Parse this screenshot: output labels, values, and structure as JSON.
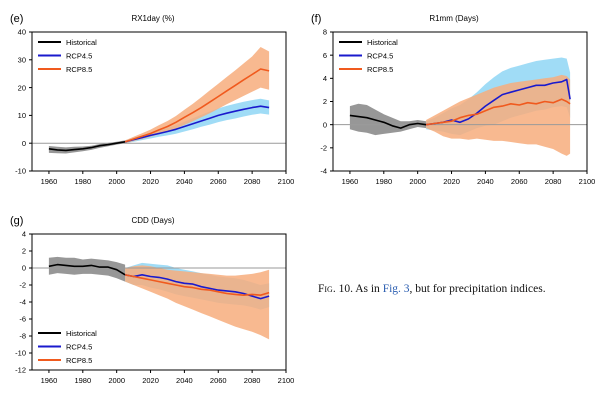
{
  "caption": {
    "fig_label": "Fig. 10.",
    "text_before": " As in ",
    "link": "Fig. 3",
    "text_after": ", but for precipitation indices."
  },
  "colors": {
    "historical": "#000000",
    "historical_band": "#8c8c8c",
    "rcp45": "#1a1acd",
    "rcp45_band": "#8fd6f5",
    "rcp85": "#f05a1e",
    "rcp85_band": "#f7ad7d",
    "zero_line": "#9a9a9a"
  },
  "chart_data": [
    {
      "type": "line",
      "panel": "(e)",
      "title": "RX1day (%)",
      "xlabel": "",
      "ylabel": "",
      "xlim": [
        1950,
        2100
      ],
      "ylim": [
        -10,
        40
      ],
      "xticks": [
        1960,
        1980,
        2000,
        2020,
        2040,
        2060,
        2080,
        2100
      ],
      "yticks": [
        -10,
        0,
        10,
        20,
        30,
        40
      ],
      "legend": {
        "placement": "top-left",
        "entries": [
          "Historical",
          "RCP4.5",
          "RCP8.5"
        ]
      },
      "series": [
        {
          "name": "Historical",
          "x": [
            1960,
            1965,
            1970,
            1975,
            1980,
            1985,
            1990,
            1995,
            2000,
            2005
          ],
          "values": [
            -2,
            -2.4,
            -2.6,
            -2.3,
            -2,
            -1.6,
            -0.9,
            -0.5,
            0,
            0.5
          ],
          "lower": [
            -3.5,
            -3.6,
            -3.7,
            -3.3,
            -2.9,
            -2.4,
            -1.7,
            -1.1,
            -0.5,
            0
          ],
          "upper": [
            -1,
            -1.3,
            -1.5,
            -1.3,
            -1.2,
            -0.9,
            -0.3,
            0.1,
            0.5,
            1
          ]
        },
        {
          "name": "RCP4.5",
          "x": [
            2005,
            2010,
            2015,
            2020,
            2025,
            2030,
            2035,
            2040,
            2045,
            2050,
            2055,
            2060,
            2065,
            2070,
            2075,
            2080,
            2085,
            2090
          ],
          "values": [
            0.5,
            1.3,
            2.0,
            2.8,
            3.5,
            4.2,
            5.0,
            6.0,
            7.0,
            8.0,
            9.0,
            10.0,
            10.8,
            11.5,
            12.2,
            12.8,
            13.3,
            12.8
          ],
          "lower": [
            0,
            0.5,
            1.1,
            1.7,
            2.3,
            2.8,
            3.4,
            4.2,
            5.0,
            5.9,
            6.7,
            7.6,
            8.3,
            8.9,
            9.6,
            10.2,
            10.7,
            10.3
          ],
          "upper": [
            1,
            2.0,
            2.8,
            3.7,
            4.6,
            5.5,
            6.5,
            7.7,
            9.0,
            10.2,
            11.4,
            12.5,
            13.4,
            14.2,
            14.9,
            15.5,
            16.0,
            15.4
          ]
        },
        {
          "name": "RCP8.5",
          "x": [
            2005,
            2010,
            2015,
            2020,
            2025,
            2030,
            2035,
            2040,
            2045,
            2050,
            2055,
            2060,
            2065,
            2070,
            2075,
            2080,
            2085,
            2090
          ],
          "values": [
            0.5,
            1.5,
            2.5,
            3.5,
            4.8,
            6.0,
            7.5,
            9.3,
            11.0,
            12.8,
            14.8,
            16.8,
            18.8,
            20.8,
            22.8,
            24.7,
            26.7,
            26.0
          ],
          "lower": [
            0,
            0.8,
            1.5,
            2.3,
            3.2,
            4.2,
            5.3,
            6.6,
            7.9,
            9.3,
            10.8,
            12.4,
            14.0,
            15.5,
            17.0,
            18.5,
            20.0,
            19.2
          ],
          "upper": [
            1,
            2.3,
            3.6,
            4.9,
            6.5,
            8.0,
            9.8,
            12.0,
            14.2,
            16.5,
            19.0,
            21.4,
            23.8,
            26.2,
            28.7,
            31.2,
            34.6,
            33.0
          ]
        }
      ]
    },
    {
      "type": "line",
      "panel": "(f)",
      "title": "R1mm (Days)",
      "xlabel": "",
      "ylabel": "",
      "xlim": [
        1950,
        2100
      ],
      "ylim": [
        -4,
        8
      ],
      "xticks": [
        1960,
        1980,
        2000,
        2020,
        2040,
        2060,
        2080,
        2100
      ],
      "yticks": [
        -4,
        -2,
        0,
        2,
        4,
        6,
        8
      ],
      "legend": {
        "placement": "top-left",
        "entries": [
          "Historical",
          "RCP4.5",
          "RCP8.5"
        ]
      },
      "series": [
        {
          "name": "Historical",
          "x": [
            1960,
            1965,
            1970,
            1975,
            1980,
            1985,
            1990,
            1995,
            2000,
            2005
          ],
          "values": [
            0.8,
            0.7,
            0.6,
            0.4,
            0.2,
            -0.1,
            -0.3,
            0,
            0.1,
            0
          ],
          "lower": [
            -0.4,
            -0.6,
            -0.7,
            -0.9,
            -0.8,
            -0.7,
            -0.6,
            -0.4,
            -0.2,
            -0.3
          ],
          "upper": [
            1.6,
            1.8,
            1.7,
            1.3,
            0.9,
            0.6,
            0.3,
            0.3,
            0.4,
            0.3
          ]
        },
        {
          "name": "RCP4.5",
          "x": [
            2005,
            2010,
            2015,
            2020,
            2025,
            2030,
            2035,
            2040,
            2045,
            2050,
            2055,
            2060,
            2065,
            2070,
            2075,
            2080,
            2085,
            2088,
            2090
          ],
          "values": [
            0,
            0.1,
            0.2,
            0.4,
            0.2,
            0.5,
            1.0,
            1.6,
            2.1,
            2.6,
            2.8,
            3.0,
            3.2,
            3.4,
            3.4,
            3.6,
            3.7,
            3.9,
            2.2
          ],
          "lower": [
            -0.4,
            -0.5,
            -0.6,
            -0.8,
            -0.9,
            -0.6,
            -0.3,
            -0.1,
            0.0,
            0.3,
            0.6,
            0.8,
            1.0,
            1.2,
            1.3,
            1.5,
            1.6,
            1.5,
            0.6
          ],
          "upper": [
            0.3,
            0.6,
            1.0,
            1.4,
            1.7,
            2.2,
            2.8,
            3.5,
            4.1,
            4.6,
            4.9,
            5.1,
            5.3,
            5.5,
            5.6,
            5.7,
            5.8,
            5.7,
            4.5
          ]
        },
        {
          "name": "RCP8.5",
          "x": [
            2005,
            2010,
            2015,
            2020,
            2025,
            2030,
            2035,
            2040,
            2045,
            2050,
            2055,
            2060,
            2065,
            2070,
            2075,
            2080,
            2085,
            2088,
            2090
          ],
          "values": [
            0,
            0.1,
            0.2,
            0.3,
            0.6,
            0.8,
            0.9,
            1.2,
            1.5,
            1.6,
            1.8,
            1.7,
            1.9,
            1.8,
            2.0,
            1.9,
            2.2,
            2.0,
            1.8
          ],
          "lower": [
            -0.3,
            -0.6,
            -1.0,
            -1.2,
            -1.2,
            -1.3,
            -1.2,
            -1.3,
            -1.4,
            -1.4,
            -1.5,
            -1.6,
            -1.7,
            -1.7,
            -1.9,
            -2.1,
            -2.5,
            -2.7,
            -2.5
          ],
          "upper": [
            0.4,
            0.8,
            1.2,
            1.6,
            2.0,
            2.3,
            2.6,
            2.9,
            3.2,
            3.4,
            3.6,
            3.7,
            3.8,
            3.9,
            4.0,
            4.1,
            4.3,
            4.2,
            3.9
          ]
        }
      ]
    },
    {
      "type": "line",
      "panel": "(g)",
      "title": "CDD (Days)",
      "xlabel": "",
      "ylabel": "",
      "xlim": [
        1950,
        2100
      ],
      "ylim": [
        -12,
        4
      ],
      "xticks": [
        1960,
        1980,
        2000,
        2020,
        2040,
        2060,
        2080,
        2100
      ],
      "yticks": [
        -12,
        -10,
        -8,
        -6,
        -4,
        -2,
        0,
        2,
        4
      ],
      "legend": {
        "placement": "bottom-left",
        "entries": [
          "Historical",
          "RCP4.5",
          "RCP8.5"
        ]
      },
      "series": [
        {
          "name": "Historical",
          "x": [
            1960,
            1965,
            1970,
            1975,
            1980,
            1985,
            1990,
            1995,
            2000,
            2005
          ],
          "values": [
            0.2,
            0.4,
            0.3,
            0.2,
            0.2,
            0.3,
            0.1,
            0.1,
            -0.2,
            -0.8
          ],
          "lower": [
            -0.8,
            -0.6,
            -0.7,
            -0.8,
            -0.7,
            -0.7,
            -0.8,
            -0.9,
            -1.2,
            -1.6
          ],
          "upper": [
            1.2,
            1.3,
            1.2,
            1.2,
            1.0,
            1.1,
            1.0,
            0.9,
            0.7,
            0.4
          ]
        },
        {
          "name": "RCP4.5",
          "x": [
            2005,
            2010,
            2015,
            2020,
            2025,
            2030,
            2035,
            2040,
            2045,
            2050,
            2055,
            2060,
            2065,
            2070,
            2075,
            2080,
            2085,
            2090
          ],
          "values": [
            -0.8,
            -1.0,
            -0.8,
            -1.0,
            -1.1,
            -1.3,
            -1.6,
            -1.8,
            -1.9,
            -2.2,
            -2.4,
            -2.6,
            -2.7,
            -2.8,
            -3.0,
            -3.3,
            -3.6,
            -3.3
          ],
          "lower": [
            -1.6,
            -2.0,
            -2.0,
            -2.3,
            -2.5,
            -2.8,
            -3.1,
            -3.3,
            -3.5,
            -3.7,
            -3.9,
            -4.1,
            -4.2,
            -4.3,
            -4.4,
            -4.6,
            -4.9,
            -4.6
          ],
          "upper": [
            0.0,
            0.3,
            0.6,
            0.5,
            0.4,
            0.3,
            0.0,
            -0.2,
            -0.4,
            -0.6,
            -0.8,
            -1.0,
            -1.1,
            -1.2,
            -1.4,
            -1.7,
            -2.0,
            -1.8
          ]
        },
        {
          "name": "RCP8.5",
          "x": [
            2005,
            2010,
            2015,
            2020,
            2025,
            2030,
            2035,
            2040,
            2045,
            2050,
            2055,
            2060,
            2065,
            2070,
            2075,
            2080,
            2085,
            2090
          ],
          "values": [
            -0.8,
            -1.0,
            -1.2,
            -1.4,
            -1.6,
            -1.8,
            -2.0,
            -2.2,
            -2.3,
            -2.5,
            -2.6,
            -2.8,
            -3.0,
            -3.1,
            -3.2,
            -3.1,
            -3.2,
            -2.9
          ],
          "lower": [
            -1.6,
            -2.0,
            -2.4,
            -2.8,
            -3.2,
            -3.6,
            -4.1,
            -4.5,
            -4.9,
            -5.3,
            -5.7,
            -6.1,
            -6.5,
            -6.9,
            -7.2,
            -7.5,
            -7.9,
            -8.4
          ],
          "upper": [
            0.0,
            0.2,
            0.3,
            0.2,
            0.0,
            -0.2,
            -0.3,
            -0.4,
            -0.5,
            -0.6,
            -0.7,
            -0.8,
            -0.9,
            -0.9,
            -0.8,
            -0.7,
            -0.5,
            -0.2
          ]
        }
      ]
    }
  ]
}
